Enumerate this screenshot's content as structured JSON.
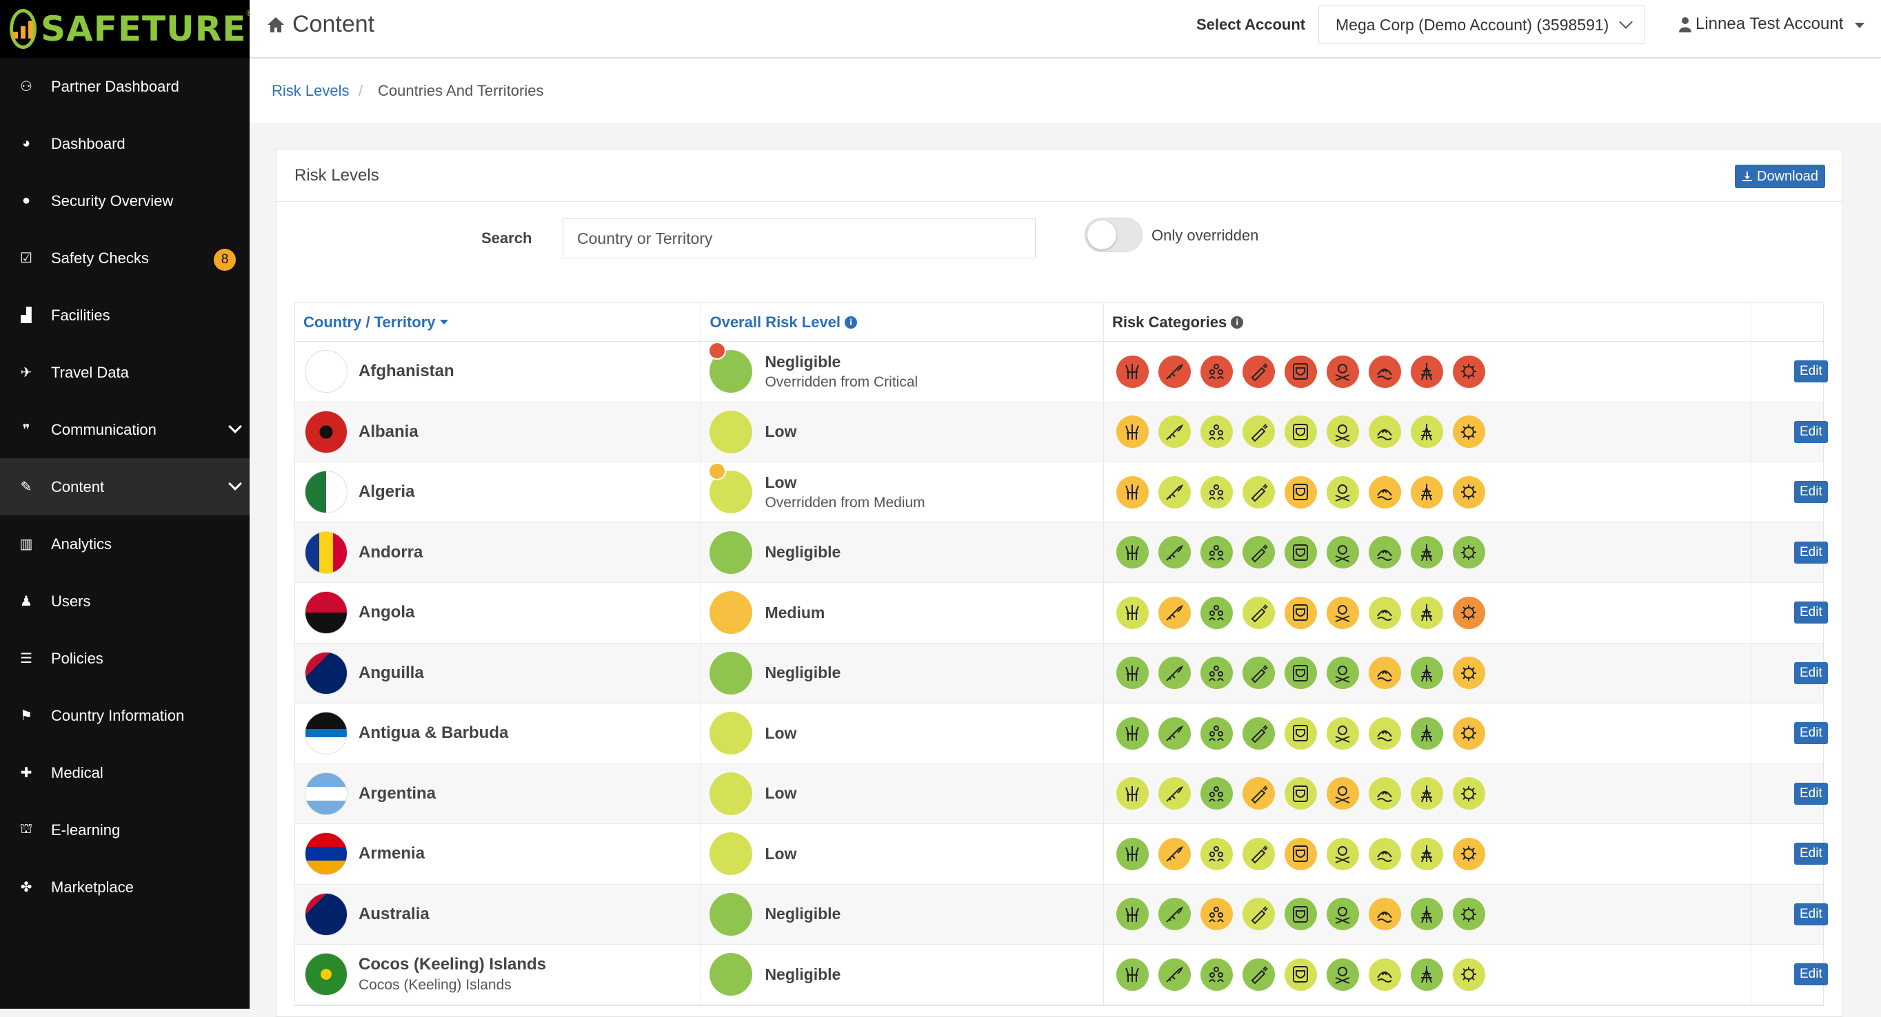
{
  "brand": {
    "name": "SAFETURE",
    "reg": "®"
  },
  "sidebar": {
    "items": [
      {
        "label": "Partner Dashboard",
        "icon": "handshake-icon",
        "glyph": "⚇"
      },
      {
        "label": "Dashboard",
        "icon": "dashboard-gauge-icon",
        "glyph": "◕"
      },
      {
        "label": "Security Overview",
        "icon": "globe-icon",
        "glyph": "●"
      },
      {
        "label": "Safety Checks",
        "icon": "checkbox-icon",
        "glyph": "☑",
        "badge": "8"
      },
      {
        "label": "Facilities",
        "icon": "bar-chart-icon",
        "glyph": "▟"
      },
      {
        "label": "Travel Data",
        "icon": "plane-icon",
        "glyph": "✈"
      },
      {
        "label": "Communication",
        "icon": "chat-bubbles-icon",
        "glyph": "❞",
        "chevron": true
      },
      {
        "label": "Content",
        "icon": "edit-icon",
        "glyph": "✎",
        "chevron": true,
        "active": true
      },
      {
        "label": "Analytics",
        "icon": "analytics-icon",
        "glyph": "▥"
      },
      {
        "label": "Users",
        "icon": "user-icon",
        "glyph": "♟"
      },
      {
        "label": "Policies",
        "icon": "list-icon",
        "glyph": "☰"
      },
      {
        "label": "Country Information",
        "icon": "flag-icon",
        "glyph": "⚑"
      },
      {
        "label": "Medical",
        "icon": "medkit-icon",
        "glyph": "✚"
      },
      {
        "label": "E-learning",
        "icon": "graduation-cap-icon",
        "glyph": "⛫"
      },
      {
        "label": "Marketplace",
        "icon": "puzzle-icon",
        "glyph": "✤"
      }
    ]
  },
  "header": {
    "title": "Content",
    "select_account_label": "Select Account",
    "account": "Mega Corp (Demo Account) (3598591)",
    "user": "Linnea Test Account"
  },
  "breadcrumb": {
    "parent": "Risk Levels",
    "sep": "/",
    "current": "Countries And Territories"
  },
  "card": {
    "title": "Risk Levels",
    "download_label": "Download",
    "search_label": "Search",
    "search_placeholder": "Country or Territory",
    "toggle_label": "Only overridden"
  },
  "table": {
    "headers": {
      "country": "Country / Territory",
      "overall": "Overall Risk Level",
      "categories": "Risk Categories"
    },
    "edit_label": "Edit",
    "rows": [
      {
        "country": "Afghanistan",
        "sub": "",
        "level": "Negligible",
        "override": "Overridden from Critical",
        "override_color": "#e0533a",
        "cats": [
          "C",
          "C",
          "C",
          "C",
          "C",
          "C",
          "C",
          "C",
          "C"
        ]
      },
      {
        "country": "Albania",
        "sub": "",
        "level": "Low",
        "override": "",
        "cats": [
          "M",
          "L",
          "L",
          "L",
          "L",
          "L",
          "L",
          "L",
          "M"
        ]
      },
      {
        "country": "Algeria",
        "sub": "",
        "level": "Low",
        "override": "Overridden from Medium",
        "override_color": "#f5b83d",
        "cats": [
          "M",
          "L",
          "L",
          "L",
          "M",
          "L",
          "M",
          "M",
          "M"
        ]
      },
      {
        "country": "Andorra",
        "sub": "",
        "level": "Negligible",
        "override": "",
        "cats": [
          "N",
          "N",
          "N",
          "N",
          "N",
          "N",
          "N",
          "N",
          "N"
        ]
      },
      {
        "country": "Angola",
        "sub": "",
        "level": "Medium",
        "override": "",
        "cats": [
          "L",
          "M",
          "N",
          "L",
          "M",
          "M",
          "L",
          "L",
          "H"
        ]
      },
      {
        "country": "Anguilla",
        "sub": "",
        "level": "Negligible",
        "override": "",
        "cats": [
          "N",
          "N",
          "N",
          "N",
          "N",
          "N",
          "M",
          "N",
          "M"
        ]
      },
      {
        "country": "Antigua & Barbuda",
        "sub": "",
        "level": "Low",
        "override": "",
        "cats": [
          "N",
          "N",
          "N",
          "N",
          "L",
          "L",
          "L",
          "N",
          "M"
        ]
      },
      {
        "country": "Argentina",
        "sub": "",
        "level": "Low",
        "override": "",
        "cats": [
          "L",
          "L",
          "N",
          "M",
          "L",
          "M",
          "L",
          "L",
          "L"
        ]
      },
      {
        "country": "Armenia",
        "sub": "",
        "level": "Low",
        "override": "",
        "cats": [
          "N",
          "M",
          "L",
          "L",
          "M",
          "L",
          "L",
          "L",
          "M"
        ]
      },
      {
        "country": "Australia",
        "sub": "",
        "level": "Negligible",
        "override": "",
        "cats": [
          "N",
          "N",
          "M",
          "L",
          "N",
          "N",
          "M",
          "N",
          "N"
        ]
      },
      {
        "country": "Cocos (Keeling) Islands",
        "sub": "Cocos (Keeling) Islands",
        "level": "Negligible",
        "override": "",
        "cats": [
          "N",
          "N",
          "N",
          "N",
          "L",
          "N",
          "L",
          "N",
          "L"
        ]
      }
    ]
  },
  "colors": {
    "negligible": "#8fc44f",
    "low": "#d4e157",
    "medium": "#f7c040",
    "high": "#f0913c",
    "critical": "#e0533a",
    "accent": "#2a6fb8",
    "button": "#2f6db5"
  },
  "category_icons": [
    "crowd-hands-icon",
    "rifle-icon",
    "group-people-icon",
    "syringe-icon",
    "shield-face-icon",
    "skull-crossbones-icon",
    "flood-icon",
    "tower-icon",
    "virus-icon"
  ]
}
